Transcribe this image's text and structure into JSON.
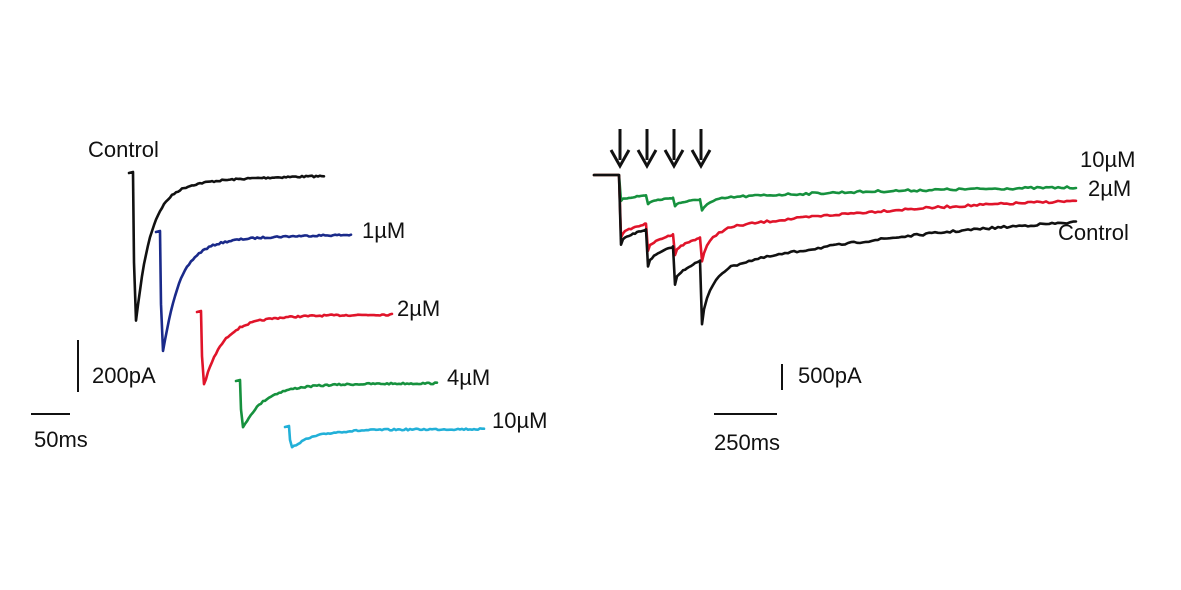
{
  "colors": {
    "control": "#111111",
    "c1uM": "#1a2a8a",
    "c2uM": "#e0142a",
    "c4uM": "#16913e",
    "c10uM_single": "#22b0d8",
    "c10uM_train": "#16913e",
    "text": "#111111"
  },
  "chart_data": [
    {
      "type": "line",
      "panel": "single-pulse",
      "series": [
        {
          "name": "Control",
          "color_key": "control",
          "peak_pA": -560
        },
        {
          "name": "1µM",
          "color_key": "c1uM",
          "peak_pA": -450
        },
        {
          "name": "2µM",
          "color_key": "c2uM",
          "peak_pA": -270
        },
        {
          "name": "4µM",
          "color_key": "c4uM",
          "peak_pA": -170
        },
        {
          "name": "10µM",
          "color_key": "c10uM_single",
          "peak_pA": -70
        }
      ],
      "scalebar": {
        "y_label": "200pA",
        "x_label": "50ms"
      }
    },
    {
      "type": "line",
      "panel": "pulse-train",
      "stimulus_marker": "↓",
      "stimulus_count": 4,
      "series": [
        {
          "name": "10µM",
          "color_key": "c10uM_train",
          "pulse_peaks_pA": [
            -500,
            -560,
            -600,
            -680
          ]
        },
        {
          "name": "2µM",
          "color_key": "c2uM",
          "pulse_peaks_pA": [
            -1200,
            -1460,
            -1540,
            -1660
          ]
        },
        {
          "name": "Control",
          "color_key": "control",
          "pulse_peaks_pA": [
            -1340,
            -1760,
            -2110,
            -2870
          ]
        }
      ],
      "scalebar": {
        "y_label": "500pA",
        "x_label": "250ms"
      }
    }
  ]
}
